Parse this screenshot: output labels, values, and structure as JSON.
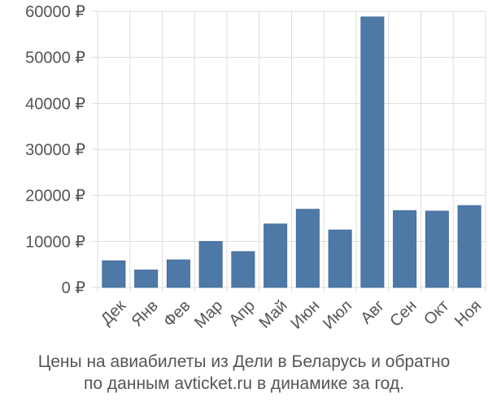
{
  "chart_data": {
    "type": "bar",
    "categories": [
      "Дек",
      "Янв",
      "Фев",
      "Мар",
      "Апр",
      "Май",
      "Июн",
      "Июл",
      "Авг",
      "Сен",
      "Окт",
      "Ноя"
    ],
    "values": [
      5800,
      3800,
      6000,
      10000,
      7800,
      13800,
      17000,
      12500,
      58800,
      16700,
      16600,
      17800
    ],
    "y_ticks": [
      "0 ₽",
      "10000 ₽",
      "20000 ₽",
      "30000 ₽",
      "40000 ₽",
      "50000 ₽",
      "60000 ₽"
    ],
    "y_tick_values": [
      0,
      10000,
      20000,
      30000,
      40000,
      50000,
      60000
    ],
    "ylim": [
      0,
      60000
    ],
    "bar_color": "#4e79a7",
    "grid": true,
    "legend": "none"
  },
  "caption": {
    "line1": "Цены на авиабилеты из Дели в Беларусь и обратно",
    "line2": "по данным avticket.ru в динамике за год."
  }
}
